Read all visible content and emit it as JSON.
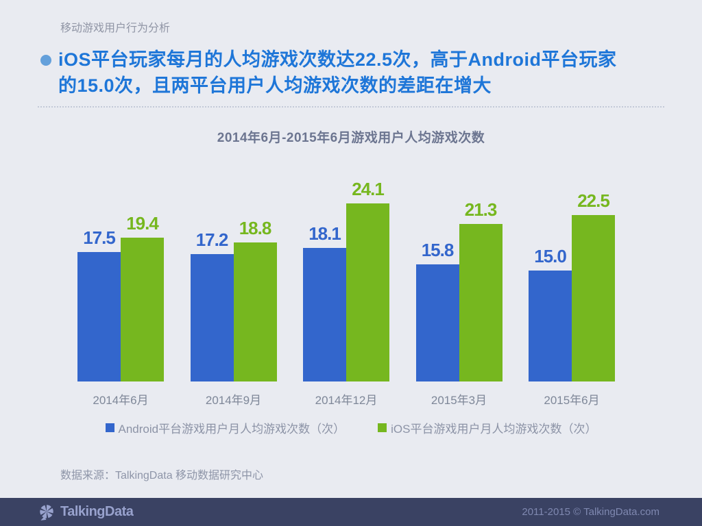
{
  "page": {
    "kicker": "移动游戏用户行为分析",
    "headline_lines": [
      "iOS平台玩家每月的人均游戏次数达22.5次，高于Android平台玩家",
      "的15.0次，且两平台用户人均游戏次数的差距在增大"
    ],
    "source": "数据来源：TalkingData 移动数据研究中心"
  },
  "chart_data": {
    "type": "bar",
    "title": "2014年6月-2015年6月游戏用户人均游戏次数",
    "categories": [
      "2014年6月",
      "2014年9月",
      "2014年12月",
      "2015年3月",
      "2015年6月"
    ],
    "series": [
      {
        "name": "Android平台游戏用户月人均游戏次数（次）",
        "color": "#3366CC",
        "values": [
          17.5,
          17.2,
          18.1,
          15.8,
          15.0
        ]
      },
      {
        "name": "iOS平台游戏用户月人均游戏次数（次）",
        "color": "#76B71F",
        "values": [
          19.4,
          18.8,
          24.1,
          21.3,
          22.5
        ]
      }
    ],
    "ylim": [
      0,
      26
    ],
    "grid": false,
    "axis_lines": false,
    "legend_position": "bottom",
    "value_labels": true
  },
  "footer": {
    "logo_text": "TalkingData",
    "copyright": "2011-2015 © TalkingData.com"
  },
  "colors": {
    "background": "#E9EBF1",
    "headline_blue": "#1E76D8",
    "bullet_blue": "#64A0DB",
    "android_bar": "#3366CC",
    "ios_bar": "#76B71F",
    "footer_bg": "#3A4263",
    "footer_text": "#98A2CD"
  }
}
